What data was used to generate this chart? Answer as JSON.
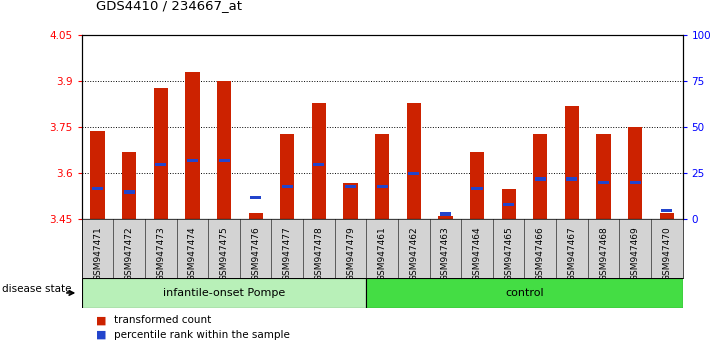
{
  "title": "GDS4410 / 234667_at",
  "samples": [
    "GSM947471",
    "GSM947472",
    "GSM947473",
    "GSM947474",
    "GSM947475",
    "GSM947476",
    "GSM947477",
    "GSM947478",
    "GSM947479",
    "GSM947461",
    "GSM947462",
    "GSM947463",
    "GSM947464",
    "GSM947465",
    "GSM947466",
    "GSM947467",
    "GSM947468",
    "GSM947469",
    "GSM947470"
  ],
  "transformed_count": [
    3.74,
    3.67,
    3.88,
    3.93,
    3.9,
    3.47,
    3.73,
    3.83,
    3.57,
    3.73,
    3.83,
    3.46,
    3.67,
    3.55,
    3.73,
    3.82,
    3.73,
    3.75,
    3.47
  ],
  "percentile_rank": [
    17,
    15,
    30,
    32,
    32,
    12,
    18,
    30,
    18,
    18,
    25,
    3,
    17,
    8,
    22,
    22,
    20,
    20,
    5
  ],
  "bar_color": "#cc2200",
  "blue_color": "#2244cc",
  "ymin": 3.45,
  "ymax": 4.05,
  "yticks_left": [
    3.45,
    3.6,
    3.75,
    3.9,
    4.05
  ],
  "yticks_right": [
    0,
    25,
    50,
    75,
    100
  ],
  "group1_label": "infantile-onset Pompe",
  "group2_label": "control",
  "group1_count": 9,
  "group2_count": 10,
  "disease_state_label": "disease state",
  "legend1": "transformed count",
  "legend2": "percentile rank within the sample",
  "bar_width": 0.45,
  "blue_bar_width": 0.35,
  "xtick_bg": "#d3d3d3",
  "group1_color": "#b8f0b8",
  "group2_color": "#44dd44"
}
